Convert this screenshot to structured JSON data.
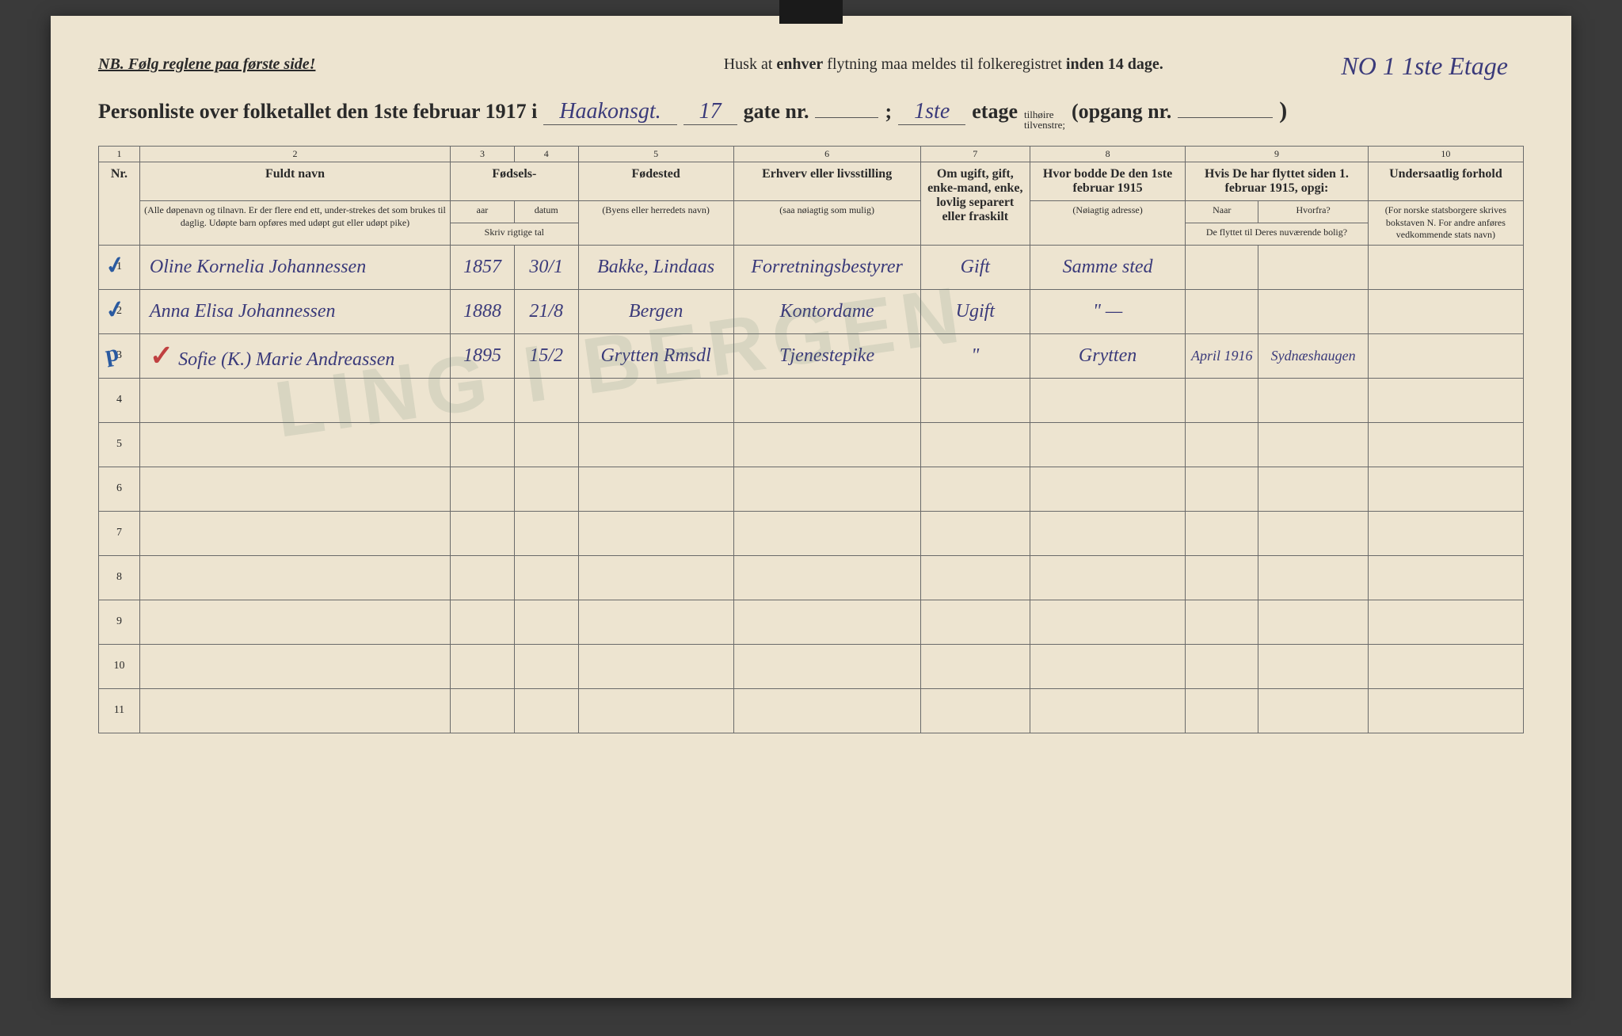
{
  "header": {
    "nb": "NB.   Følg reglene paa første side!",
    "husk_pre": "Husk at ",
    "husk_bold1": "enhver",
    "husk_mid": " flytning maa meldes til folkeregistret ",
    "husk_bold2": "inden 14 dage.",
    "top_annotation": "NO 1    1ste Etage"
  },
  "title": {
    "main": "Personliste over folketallet den 1ste februar 1917 i",
    "street": "Haakonsgt.",
    "street_num": "17",
    "gate_label": "gate nr.",
    "gate_num": "",
    "semicolon": ";",
    "etage_num": "1ste",
    "etage_label": "etage",
    "tilheire": "tilhøire",
    "tilvenstre": "tilvenstre;",
    "opgang_label": "(opgang nr.",
    "opgang_num": "",
    "close_paren": ")"
  },
  "columns": {
    "nums": [
      "1",
      "2",
      "3",
      "4",
      "5",
      "6",
      "7",
      "8",
      "9",
      "10"
    ],
    "nr": "Nr.",
    "name_head": "Fuldt navn",
    "name_sub": "(Alle døpenavn og tilnavn. Er der flere end ett, under-strekes det som brukes til daglig. Udøpte barn opføres med udøpt gut eller udøpt pike)",
    "fodsel": "Fødsels-",
    "aar": "aar",
    "datum": "datum",
    "skriv": "Skriv rigtige tal",
    "fodested": "Fødested",
    "fodested_sub": "(Byens eller herredets navn)",
    "erhverv": "Erhverv eller livsstilling",
    "erhverv_sub": "(saa nøiagtig som mulig)",
    "status": "Om ugift, gift, enke-mand, enke, lovlig separert eller fraskilt",
    "addr1915": "Hvor bodde De den 1ste februar 1915",
    "addr1915_sub": "(Nøiagtig adresse)",
    "flyttet": "Hvis De har flyttet siden 1. februar 1915, opgi:",
    "naar": "Naar",
    "hvorfra": "Hvorfra?",
    "flyttet_sub": "De flyttet til Deres nuværende bolig?",
    "under": "Undersaatlig forhold",
    "under_sub": "(For norske statsborgere skrives bokstaven N. For andre anføres vedkommende stats navn)"
  },
  "rows": [
    {
      "nr": "1",
      "check": "✓",
      "name": "Oline Kornelia Johannessen",
      "year": "1857",
      "date": "30/1",
      "place": "Bakke, Lindaas",
      "occ": "Forretningsbestyrer",
      "status": "Gift",
      "addr": "Samme sted",
      "naar": "",
      "hvor": "",
      "nation": ""
    },
    {
      "nr": "2",
      "check": "✓",
      "name": "Anna Elisa Johannessen",
      "year": "1888",
      "date": "21/8",
      "place": "Bergen",
      "occ": "Kontordame",
      "status": "Ugift",
      "addr": "\"   —",
      "naar": "",
      "hvor": "",
      "nation": ""
    },
    {
      "nr": "3",
      "check": "p",
      "name": "Sofie (K.) Marie Andreassen",
      "redmark": "✓",
      "year": "1895",
      "date": "15/2",
      "place": "Grytten Rmsdl",
      "occ": "Tjenestepike",
      "status": "\"",
      "addr": "Grytten",
      "naar": "April 1916",
      "hvor": "Sydnæshaugen",
      "nation": ""
    },
    {
      "nr": "4"
    },
    {
      "nr": "5"
    },
    {
      "nr": "6"
    },
    {
      "nr": "7"
    },
    {
      "nr": "8"
    },
    {
      "nr": "9"
    },
    {
      "nr": "10"
    },
    {
      "nr": "11"
    }
  ],
  "colors": {
    "paper": "#ede4d0",
    "ink_print": "#2a2a2a",
    "ink_hand": "#3a3a7a",
    "ink_blue": "#2a5aa0",
    "ink_red": "#c04040",
    "border": "#6a6a6a"
  }
}
